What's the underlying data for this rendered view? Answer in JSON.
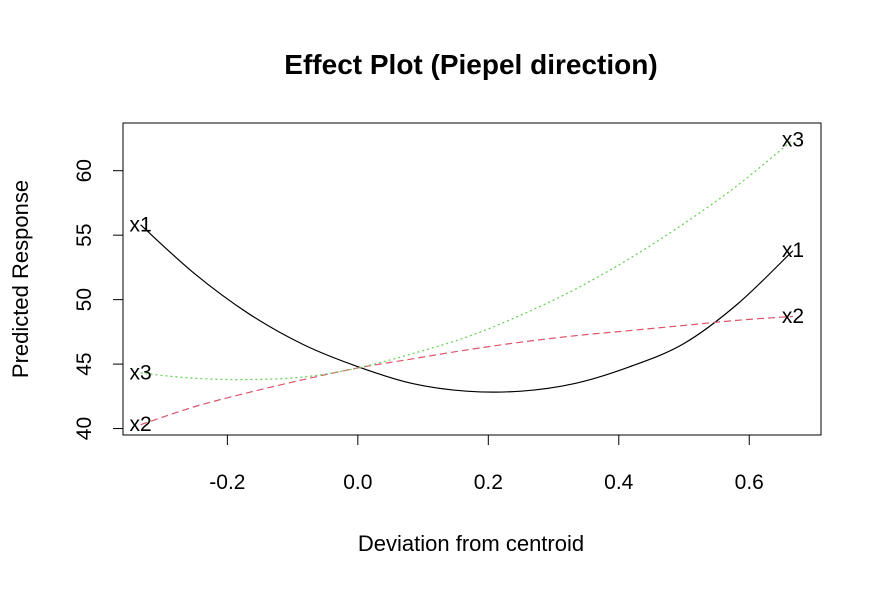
{
  "chart_data": {
    "type": "line",
    "title": "Effect Plot (Piepel direction)",
    "xlabel": "Deviation from centroid",
    "ylabel": "Predicted Response",
    "xlim": [
      -0.36,
      0.71
    ],
    "ylim": [
      39.5,
      63.7
    ],
    "xticks": [
      -0.2,
      0.0,
      0.2,
      0.4,
      0.6
    ],
    "xtick_labels": [
      "-0.2",
      "0.0",
      "0.2",
      "0.4",
      "0.6"
    ],
    "yticks": [
      40,
      45,
      50,
      55,
      60
    ],
    "ytick_labels": [
      "40",
      "45",
      "50",
      "55",
      "60"
    ],
    "grid": false,
    "legend": "none",
    "series": [
      {
        "name": "x1",
        "color": "#000000",
        "dash": "solid",
        "x": [
          -0.333,
          -0.25,
          -0.167,
          -0.083,
          0.0,
          0.083,
          0.167,
          0.25,
          0.333,
          0.417,
          0.5,
          0.583,
          0.667
        ],
        "y": [
          55.8,
          52.0,
          48.9,
          46.5,
          44.8,
          43.5,
          42.9,
          42.9,
          43.5,
          44.8,
          46.6,
          49.7,
          53.8
        ]
      },
      {
        "name": "x2",
        "color": "#DF536B",
        "dash": "dashed",
        "x": [
          -0.333,
          -0.25,
          -0.167,
          -0.083,
          0.0,
          0.083,
          0.167,
          0.25,
          0.333,
          0.417,
          0.5,
          0.583,
          0.667
        ],
        "y": [
          40.3,
          41.7,
          42.8,
          43.8,
          44.7,
          45.4,
          46.1,
          46.7,
          47.2,
          47.6,
          48.0,
          48.4,
          48.7
        ]
      },
      {
        "name": "x3",
        "color": "#61D04F",
        "dash": "dotted",
        "x": [
          -0.333,
          -0.25,
          -0.167,
          -0.083,
          0.0,
          0.083,
          0.167,
          0.25,
          0.333,
          0.417,
          0.5,
          0.583,
          0.667
        ],
        "y": [
          44.3,
          43.9,
          43.8,
          44.0,
          44.7,
          45.8,
          47.1,
          48.8,
          50.8,
          53.2,
          55.9,
          58.9,
          62.4
        ]
      }
    ]
  }
}
